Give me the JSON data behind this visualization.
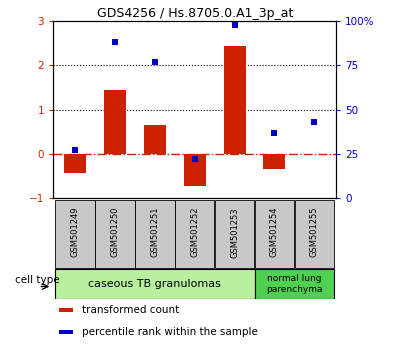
{
  "title": "GDS4256 / Hs.8705.0.A1_3p_at",
  "samples": [
    "GSM501249",
    "GSM501250",
    "GSM501251",
    "GSM501252",
    "GSM501253",
    "GSM501254",
    "GSM501255"
  ],
  "transformed_count": [
    -0.42,
    1.45,
    0.65,
    -0.72,
    2.45,
    -0.35,
    0.0
  ],
  "percentile_rank": [
    27,
    88,
    77,
    22,
    98,
    37,
    43
  ],
  "ylim_left": [
    -1,
    3
  ],
  "ylim_right": [
    0,
    100
  ],
  "bar_color": "#cc2200",
  "dot_color": "#0000cc",
  "zero_line_color": "#cc2200",
  "dotted_line_color": "#000000",
  "group1_indices": [
    0,
    1,
    2,
    3,
    4
  ],
  "group2_indices": [
    5,
    6
  ],
  "group1_label": "caseous TB granulomas",
  "group2_label": "normal lung\nparenchyma",
  "group1_color": "#b8f0a0",
  "group2_color": "#50d050",
  "cell_type_label": "cell type",
  "legend_bar_label": "transformed count",
  "legend_dot_label": "percentile rank within the sample",
  "bar_width": 0.55,
  "tick_labels_left": [
    -1,
    0,
    1,
    2,
    3
  ],
  "tick_labels_right": [
    0,
    25,
    50,
    75,
    100
  ],
  "sample_box_color": "#c8c8c8",
  "fig_width": 4.1,
  "fig_height": 3.54,
  "dpi": 100
}
